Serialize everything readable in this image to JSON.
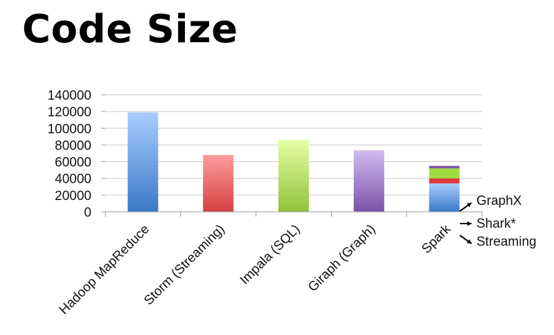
{
  "slide": {
    "title": "Code Size"
  },
  "colors": {
    "hadoop": [
      "#a9cdff",
      "#3a78c8"
    ],
    "storm": [
      "#ff9e9e",
      "#d43f3f"
    ],
    "impala": [
      "#e6ffa6",
      "#8fc23a"
    ],
    "giraph": [
      "#d2bbef",
      "#7b52a8"
    ],
    "spark_core": [
      "#a9cdff",
      "#3a78c8"
    ],
    "spark_streaming": [
      "#e0383c"
    ],
    "spark_shark": [
      "#9fdb3e"
    ],
    "spark_graphx": [
      "#7e5aa5"
    ],
    "grid": "#c9c9c9",
    "axis": "#999999"
  },
  "chart_data": {
    "type": "bar",
    "categories": [
      "Hadoop MapReduce",
      "Storm (Streaming)",
      "Impala (SQL)",
      "Giraph (Graph)",
      "Spark"
    ],
    "values": [
      119000,
      68000,
      86000,
      73500,
      55000
    ],
    "spark_stack": [
      {
        "name": "Spark",
        "value": 34000
      },
      {
        "name": "Streaming",
        "value": 6000
      },
      {
        "name": "Shark*",
        "value": 12000
      },
      {
        "name": "GraphX",
        "value": 3000
      }
    ],
    "ylim": [
      0,
      140000
    ],
    "yticks": [
      0,
      20000,
      40000,
      60000,
      80000,
      100000,
      120000,
      140000
    ],
    "ytick_labels": [
      "0",
      "20000",
      "40000",
      "60000",
      "80000",
      "100000",
      "120000",
      "140000"
    ],
    "grid": true,
    "annotations": [
      "GraphX",
      "Shark*",
      "Streaming"
    ]
  }
}
